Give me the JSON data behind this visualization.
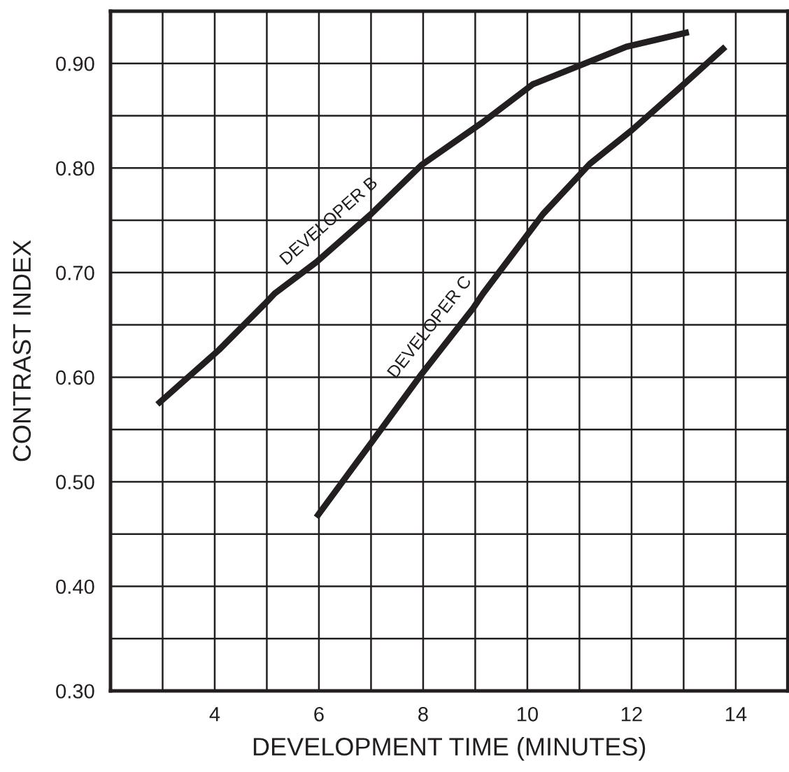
{
  "chart_data": {
    "type": "line",
    "xlabel": "DEVELOPMENT TIME (MINUTES)",
    "ylabel": "CONTRAST INDEX",
    "xlim": [
      2,
      15
    ],
    "ylim": [
      0.3,
      0.95
    ],
    "xticks": [
      {
        "value": 3,
        "label": null
      },
      4,
      {
        "value": 5,
        "label": null
      },
      6,
      {
        "value": 7,
        "label": null
      },
      8,
      {
        "value": 9,
        "label": null
      },
      10,
      {
        "value": 11,
        "label": null
      },
      12,
      {
        "value": 13,
        "label": null
      },
      14
    ],
    "yticks": [
      {
        "value": 0.3,
        "label": "0.30"
      },
      {
        "value": 0.35,
        "label": null
      },
      {
        "value": 0.4,
        "label": "0.40"
      },
      {
        "value": 0.45,
        "label": null
      },
      {
        "value": 0.5,
        "label": "0.50"
      },
      {
        "value": 0.55,
        "label": null
      },
      {
        "value": 0.6,
        "label": "0.60"
      },
      {
        "value": 0.65,
        "label": null
      },
      {
        "value": 0.7,
        "label": "0.70"
      },
      {
        "value": 0.75,
        "label": null
      },
      {
        "value": 0.8,
        "label": "0.80"
      },
      {
        "value": 0.85,
        "label": null
      },
      {
        "value": 0.9,
        "label": "0.90"
      }
    ],
    "grid": true,
    "legend": false,
    "marker": "none",
    "line_style": "solid",
    "series": [
      {
        "name": "DEVELOPER B",
        "color": "#231f20",
        "x": [
          2.9,
          4.08,
          4.96,
          5.15,
          5.95,
          7.0,
          7.97,
          9.15,
          10.1,
          11.0,
          11.9,
          13.1
        ],
        "values": [
          0.574,
          0.626,
          0.67,
          0.68,
          0.71,
          0.756,
          0.803,
          0.844,
          0.88,
          0.898,
          0.916,
          0.93
        ]
      },
      {
        "name": "DEVELOPER C",
        "color": "#231f20",
        "x": [
          5.95,
          7.0,
          7.97,
          8.96,
          9.15,
          10.3,
          11.2,
          12.0,
          13.0,
          13.8
        ],
        "values": [
          0.466,
          0.537,
          0.603,
          0.666,
          0.68,
          0.756,
          0.804,
          0.836,
          0.88,
          0.916
        ]
      }
    ]
  }
}
